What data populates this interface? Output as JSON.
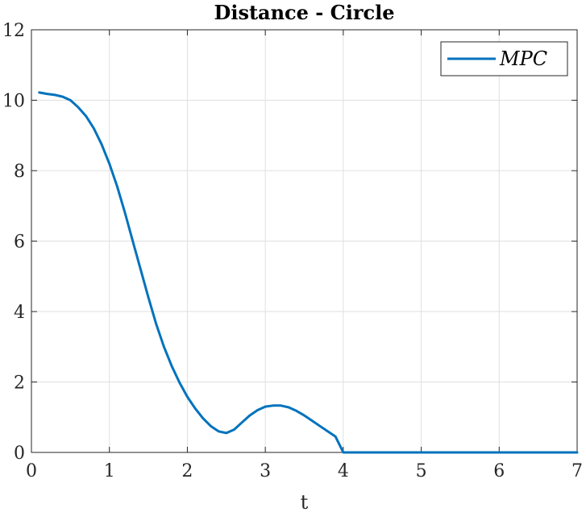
{
  "chart_data": {
    "type": "line",
    "title": "Distance - Circle",
    "xlabel": "t",
    "ylabel": "",
    "xlim": [
      0,
      7
    ],
    "ylim": [
      0,
      12
    ],
    "xticks": [
      0,
      1,
      2,
      3,
      4,
      5,
      6,
      7
    ],
    "yticks": [
      0,
      2,
      4,
      6,
      8,
      10,
      12
    ],
    "grid": true,
    "legend_position": "top-right",
    "series": [
      {
        "name": "MPC",
        "color": "#0072BD",
        "x": [
          0.1,
          0.2,
          0.3,
          0.4,
          0.5,
          0.6,
          0.7,
          0.8,
          0.9,
          1.0,
          1.1,
          1.2,
          1.3,
          1.4,
          1.5,
          1.6,
          1.7,
          1.8,
          1.9,
          2.0,
          2.1,
          2.2,
          2.3,
          2.4,
          2.5,
          2.6,
          2.7,
          2.8,
          2.9,
          3.0,
          3.1,
          3.2,
          3.3,
          3.4,
          3.5,
          3.6,
          3.7,
          3.8,
          3.9,
          4.0,
          4.1,
          5.0,
          6.0,
          7.0
        ],
        "y": [
          10.22,
          10.18,
          10.15,
          10.1,
          10.0,
          9.8,
          9.55,
          9.2,
          8.75,
          8.2,
          7.55,
          6.8,
          6.0,
          5.2,
          4.4,
          3.65,
          3.0,
          2.45,
          1.98,
          1.58,
          1.25,
          0.97,
          0.75,
          0.6,
          0.55,
          0.65,
          0.85,
          1.05,
          1.2,
          1.3,
          1.33,
          1.33,
          1.28,
          1.18,
          1.05,
          0.9,
          0.75,
          0.6,
          0.45,
          0.0,
          0.0,
          0.0,
          0.0,
          0.0
        ]
      }
    ]
  }
}
